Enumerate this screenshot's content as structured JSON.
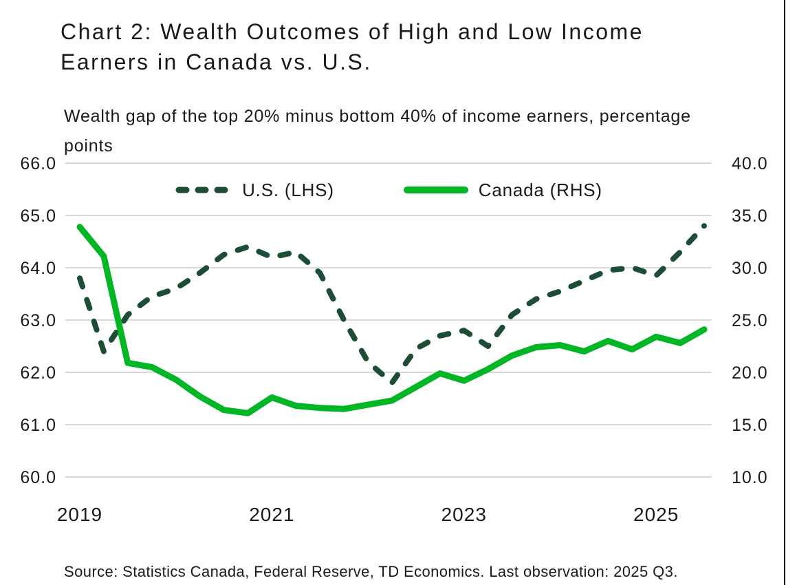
{
  "header": {
    "title": "Chart 2: Wealth Outcomes of High and Low Income Earners in Canada vs. U.S.",
    "subtitle": "Wealth gap of the top 20% minus bottom 40% of income earners, percentage points"
  },
  "chart_data": {
    "type": "line",
    "categories": [
      "2019 Q1",
      "2019 Q2",
      "2019 Q3",
      "2019 Q4",
      "2020 Q1",
      "2020 Q2",
      "2020 Q3",
      "2020 Q4",
      "2021 Q1",
      "2021 Q2",
      "2021 Q3",
      "2021 Q4",
      "2022 Q1",
      "2022 Q2",
      "2022 Q3",
      "2022 Q4",
      "2023 Q1",
      "2023 Q2",
      "2023 Q3",
      "2023 Q4",
      "2024 Q1",
      "2024 Q2",
      "2024 Q3",
      "2024 Q4",
      "2025 Q1",
      "2025 Q2",
      "2025 Q3"
    ],
    "series": [
      {
        "name": "U.S. (LHS)",
        "axis": "left",
        "style": "dashed",
        "color": "#1d4d34",
        "values": [
          63.8,
          62.4,
          63.1,
          63.45,
          63.6,
          63.9,
          64.25,
          64.4,
          64.2,
          64.3,
          63.9,
          63.0,
          62.2,
          61.8,
          62.45,
          62.7,
          62.8,
          62.5,
          63.1,
          63.4,
          63.55,
          63.75,
          63.95,
          64.0,
          63.85,
          64.3,
          64.8
        ]
      },
      {
        "name": "Canada (RHS)",
        "axis": "right",
        "style": "solid",
        "color": "#00b624",
        "values": [
          33.9,
          31.1,
          20.9,
          20.5,
          19.3,
          17.7,
          16.4,
          16.1,
          17.6,
          16.8,
          16.6,
          16.5,
          16.9,
          17.3,
          18.6,
          19.9,
          19.2,
          20.3,
          21.6,
          22.4,
          22.6,
          22.0,
          23.0,
          22.2,
          23.4,
          22.8,
          24.1
        ]
      }
    ],
    "left_axis": {
      "min": 60,
      "max": 66,
      "ticks": [
        "66.0",
        "65.0",
        "64.0",
        "63.0",
        "62.0",
        "61.0",
        "60.0"
      ]
    },
    "right_axis": {
      "min": 10,
      "max": 40,
      "ticks": [
        "40.0",
        "35.0",
        "30.0",
        "25.0",
        "20.0",
        "15.0",
        "10.0"
      ]
    },
    "x_labels_visible": [
      "2019",
      "2021",
      "2023",
      "2025"
    ],
    "year_label_indices": [
      0,
      8,
      16,
      24
    ],
    "grid": true,
    "grid_color": "#d9d9d9",
    "legend_position": "top"
  },
  "footer": {
    "source": "Source: Statistics Canada, Federal Reserve, TD Economics. Last observation: 2025 Q3."
  }
}
